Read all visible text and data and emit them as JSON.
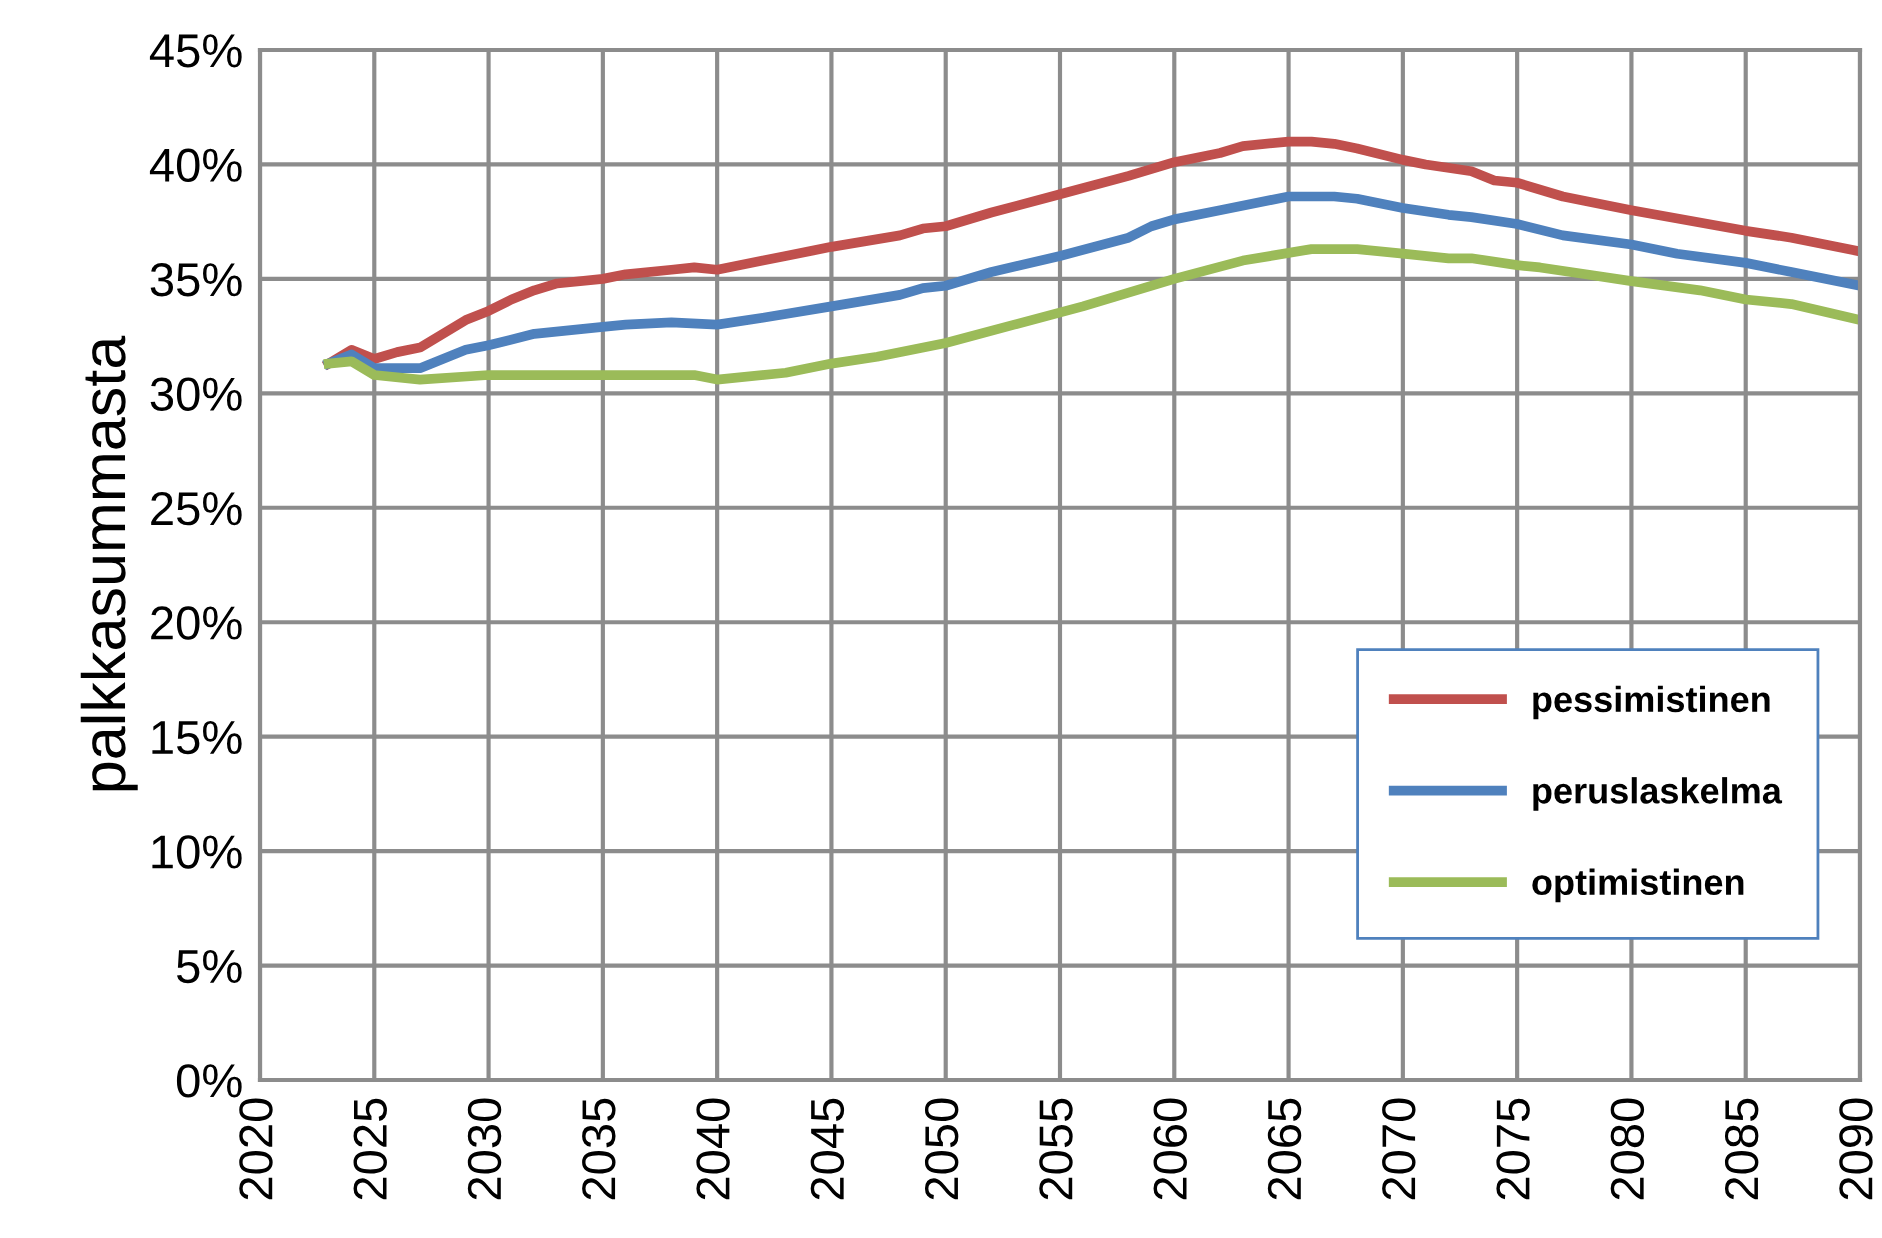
{
  "chart_data": {
    "type": "line",
    "ylabel": "palkkasummasta",
    "xlim": [
      2020,
      2090
    ],
    "xticks": [
      2020,
      2025,
      2030,
      2035,
      2040,
      2045,
      2050,
      2055,
      2060,
      2065,
      2070,
      2075,
      2080,
      2085,
      2090
    ],
    "ylim": [
      0,
      45
    ],
    "yticks": [
      {
        "value": 0,
        "label": "0%"
      },
      {
        "value": 5,
        "label": "5%"
      },
      {
        "value": 10,
        "label": "10%"
      },
      {
        "value": 15,
        "label": "15%"
      },
      {
        "value": 20,
        "label": "20%"
      },
      {
        "value": 25,
        "label": "25%"
      },
      {
        "value": 30,
        "label": "30%"
      },
      {
        "value": 35,
        "label": "35%"
      },
      {
        "value": 40,
        "label": "40%"
      },
      {
        "value": 45,
        "label": "45%"
      }
    ],
    "grid": true,
    "legend": "bottom right",
    "marker": "none",
    "line_style": "solid",
    "series": [
      {
        "name": "pessimistinen",
        "color": "#c0504d",
        "x": [
          2023,
          2024,
          2025,
          2026,
          2027,
          2028,
          2029,
          2030,
          2031,
          2032,
          2033,
          2035,
          2036,
          2038,
          2039,
          2040,
          2042,
          2043,
          2045,
          2048,
          2049,
          2050,
          2052,
          2055,
          2058,
          2060,
          2062,
          2063,
          2065,
          2066,
          2067,
          2068,
          2070,
          2071,
          2073,
          2074,
          2075,
          2077,
          2080,
          2085,
          2087,
          2090
        ],
        "values": [
          31.3,
          31.9,
          31.5,
          31.8,
          32.0,
          32.6,
          33.2,
          33.6,
          34.1,
          34.5,
          34.8,
          35.0,
          35.2,
          35.4,
          35.5,
          35.4,
          35.8,
          36.0,
          36.4,
          36.9,
          37.2,
          37.3,
          37.9,
          38.7,
          39.5,
          40.1,
          40.5,
          40.8,
          41.0,
          41.0,
          40.9,
          40.7,
          40.2,
          40.0,
          39.7,
          39.3,
          39.2,
          38.6,
          38.0,
          37.1,
          36.8,
          36.2
        ]
      },
      {
        "name": "peruslaskelma",
        "color": "#4f81bd",
        "x": [
          2023,
          2024,
          2025,
          2027,
          2028,
          2029,
          2030,
          2032,
          2035,
          2036,
          2038,
          2040,
          2042,
          2045,
          2048,
          2049,
          2050,
          2052,
          2055,
          2058,
          2059,
          2060,
          2062,
          2065,
          2067,
          2068,
          2070,
          2072,
          2073,
          2075,
          2077,
          2080,
          2082,
          2085,
          2087,
          2090
        ],
        "values": [
          31.3,
          31.7,
          31.1,
          31.1,
          31.5,
          31.9,
          32.1,
          32.6,
          32.9,
          33.0,
          33.1,
          33.0,
          33.3,
          33.8,
          34.3,
          34.6,
          34.7,
          35.3,
          36.0,
          36.8,
          37.3,
          37.6,
          38.0,
          38.6,
          38.6,
          38.5,
          38.1,
          37.8,
          37.7,
          37.4,
          36.9,
          36.5,
          36.1,
          35.7,
          35.3,
          34.7
        ]
      },
      {
        "name": "optimistinen",
        "color": "#9bbb59",
        "x": [
          2023,
          2024,
          2025,
          2027,
          2030,
          2035,
          2039,
          2040,
          2043,
          2045,
          2047,
          2050,
          2053,
          2056,
          2058,
          2060,
          2063,
          2066,
          2068,
          2070,
          2072,
          2073,
          2075,
          2076,
          2078,
          2080,
          2083,
          2085,
          2087,
          2090
        ],
        "values": [
          31.3,
          31.4,
          30.8,
          30.6,
          30.8,
          30.8,
          30.8,
          30.6,
          30.9,
          31.3,
          31.6,
          32.2,
          33.0,
          33.8,
          34.4,
          35.0,
          35.8,
          36.3,
          36.3,
          36.1,
          35.9,
          35.9,
          35.6,
          35.5,
          35.2,
          34.9,
          34.5,
          34.1,
          33.9,
          33.2
        ]
      }
    ]
  }
}
